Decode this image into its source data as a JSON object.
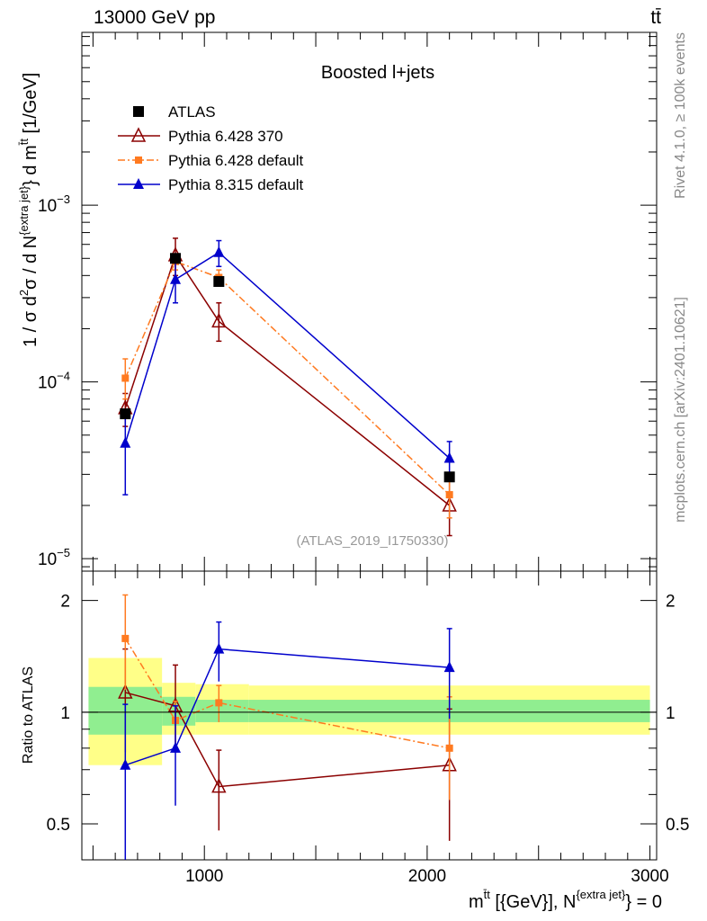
{
  "header": {
    "energy_label": "13000 GeV pp",
    "process_label": "tt̄"
  },
  "side": {
    "rivet_label": "Rivet 4.1.0, ≥ 100k events",
    "source_label": "mcplots.cern.ch [arXiv:2401.10621]"
  },
  "chart_data": {
    "type": "scatter",
    "title": "Boosted l+jets",
    "analysis_label": "(ATLAS_2019_I1750330)",
    "main_panel": {
      "ylabel": {
        "prefix": "1 / σ d",
        "sup1": "2",
        "mid": "σ / d N",
        "sup2": "{extra jet}",
        "mid2": "} d m",
        "sup3": "t̄t",
        "suffix": " [1/GeV]"
      },
      "yscale": "log",
      "ylim": [
        8.5e-06,
        0.0095
      ],
      "yticks": [
        {
          "value": 1e-05,
          "base": "10",
          "exp": "−5"
        },
        {
          "value": 0.0001,
          "base": "10",
          "exp": "−4"
        },
        {
          "value": 0.001,
          "base": "10",
          "exp": "−3"
        }
      ]
    },
    "ratio_panel": {
      "ylabel": "Ratio to ATLAS",
      "yscale": "log",
      "ylim": [
        0.4,
        2.4
      ],
      "yticks": [
        {
          "value": 0.5,
          "label": "0.5"
        },
        {
          "value": 1,
          "label": "1"
        },
        {
          "value": 2,
          "label": "2"
        }
      ],
      "bands": [
        {
          "x_lo": 480,
          "x_hi": 810,
          "stat_lo": 0.87,
          "stat_hi": 1.17,
          "tot_lo": 0.72,
          "tot_hi": 1.4
        },
        {
          "x_lo": 810,
          "x_hi": 960,
          "stat_lo": 0.92,
          "stat_hi": 1.1,
          "tot_lo": 0.87,
          "tot_hi": 1.2
        },
        {
          "x_lo": 960,
          "x_hi": 1200,
          "stat_lo": 0.94,
          "stat_hi": 1.08,
          "tot_lo": 0.87,
          "tot_hi": 1.19
        },
        {
          "x_lo": 1200,
          "x_hi": 3000,
          "stat_lo": 0.94,
          "stat_hi": 1.08,
          "tot_lo": 0.87,
          "tot_hi": 1.18
        }
      ]
    },
    "xaxis": {
      "xlim": [
        450,
        3030
      ],
      "xticks": [
        1000,
        2000,
        3000
      ],
      "xlabel": {
        "m": "m",
        "sup1": "t̄t",
        "mid": " [{GeV}], N",
        "sup2": "{extra jet}",
        "suffix": "} = 0"
      }
    },
    "x": [
      645,
      870,
      1065,
      2100
    ],
    "series": [
      {
        "name": "ATLAS",
        "color": "#000000",
        "marker": "square",
        "line": "none",
        "values": [
          6.6e-05,
          0.0005,
          0.00037,
          2.9e-05
        ],
        "err_lo": [
          0,
          0,
          0,
          0
        ],
        "err_hi": [
          0,
          0,
          0,
          0
        ],
        "ratio": [
          1,
          1,
          1,
          1
        ],
        "ratio_err_lo": [
          0,
          0,
          0,
          0
        ],
        "ratio_err_hi": [
          0,
          0,
          0,
          0
        ]
      },
      {
        "name": "Pythia 6.428 370",
        "color": "#8b0000",
        "marker": "triangle-open",
        "line": "solid",
        "values": [
          7.1e-05,
          0.00052,
          0.00022,
          2e-05
        ],
        "err_lo": [
          1.5e-05,
          0.00012,
          5e-05,
          6.5e-06
        ],
        "err_hi": [
          1.5e-05,
          0.00013,
          6e-05,
          8e-06
        ],
        "ratio": [
          1.13,
          1.04,
          0.63,
          0.72
        ],
        "ratio_err_lo": [
          0.35,
          0.25,
          0.15,
          0.27
        ],
        "ratio_err_hi": [
          0.35,
          0.3,
          0.16,
          0.3
        ]
      },
      {
        "name": "Pythia 6.428 default",
        "color": "#ff7a20",
        "marker": "square-small",
        "line": "dashdot",
        "values": [
          0.000105,
          0.00048,
          0.00039,
          2.3e-05
        ],
        "err_lo": [
          2.5e-05,
          5e-05,
          4e-05,
          6e-06
        ],
        "err_hi": [
          3e-05,
          5e-05,
          4e-05,
          6e-06
        ],
        "ratio": [
          1.58,
          0.95,
          1.06,
          0.8
        ],
        "ratio_err_lo": [
          0.43,
          0.12,
          0.12,
          0.22
        ],
        "ratio_err_hi": [
          0.49,
          0.12,
          0.12,
          0.3
        ]
      },
      {
        "name": "Pythia 8.315 default",
        "color": "#0000cc",
        "marker": "triangle",
        "line": "solid",
        "values": [
          4.5e-05,
          0.00038,
          0.00054,
          3.7e-05
        ],
        "err_lo": [
          2.2e-05,
          0.0001,
          9e-05,
          9e-06
        ],
        "err_hi": [
          2.2e-05,
          0.0001,
          9e-05,
          9e-06
        ],
        "ratio": [
          0.72,
          0.8,
          1.48,
          1.32
        ],
        "ratio_err_lo": [
          0.33,
          0.24,
          0.27,
          0.36
        ],
        "ratio_err_hi": [
          0.33,
          0.24,
          0.27,
          0.36
        ]
      }
    ]
  }
}
